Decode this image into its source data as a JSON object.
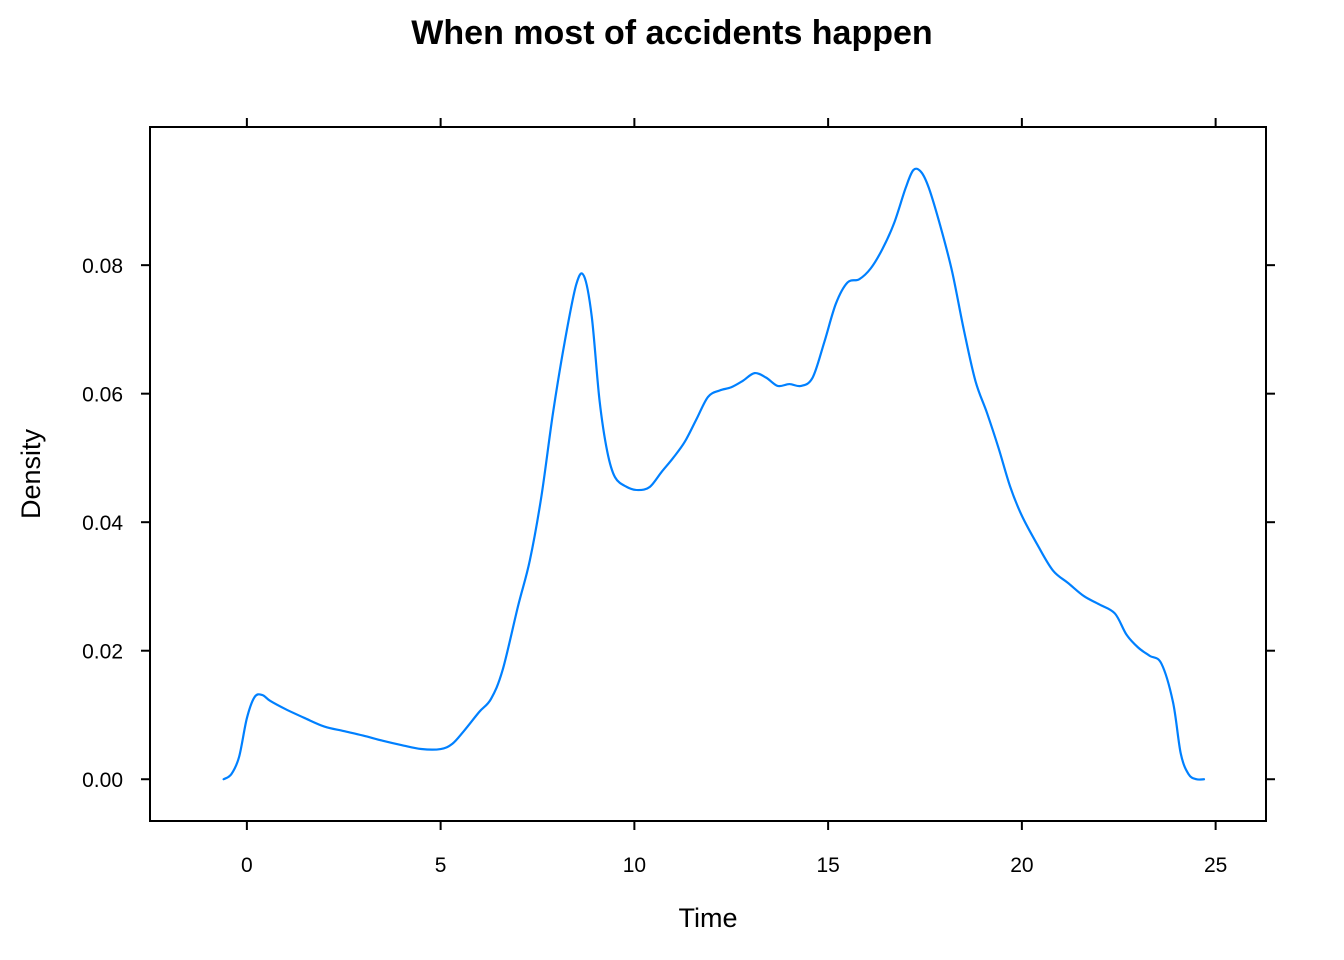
{
  "chart_data": {
    "type": "line",
    "title": "When most of accidents happen",
    "xlabel": "Time",
    "ylabel": "Density",
    "xlim": [
      -2.5,
      26.3
    ],
    "ylim": [
      -0.0065,
      0.1015
    ],
    "x_ticks": [
      0,
      5,
      10,
      15,
      20,
      25
    ],
    "x_tick_labels": [
      "0",
      "5",
      "10",
      "15",
      "20",
      "25"
    ],
    "y_ticks": [
      0.0,
      0.02,
      0.04,
      0.06,
      0.08
    ],
    "y_tick_labels": [
      "0.00",
      "0.02",
      "0.04",
      "0.06",
      "0.08"
    ],
    "grid": false,
    "legend": "none",
    "series": [
      {
        "color": "#0080ff",
        "x": [
          -0.6,
          -0.4,
          -0.2,
          0.0,
          0.2,
          0.4,
          0.6,
          1.0,
          1.5,
          2.0,
          2.5,
          3.0,
          3.5,
          4.0,
          4.5,
          5.0,
          5.3,
          5.6,
          6.0,
          6.3,
          6.6,
          7.0,
          7.3,
          7.6,
          7.9,
          8.2,
          8.5,
          8.7,
          8.9,
          9.1,
          9.3,
          9.5,
          9.8,
          10.1,
          10.4,
          10.7,
          11.0,
          11.3,
          11.6,
          11.9,
          12.2,
          12.5,
          12.8,
          13.1,
          13.4,
          13.7,
          14.0,
          14.3,
          14.6,
          14.9,
          15.2,
          15.5,
          15.8,
          16.1,
          16.4,
          16.7,
          17.0,
          17.2,
          17.4,
          17.6,
          17.9,
          18.2,
          18.5,
          18.8,
          19.1,
          19.4,
          19.7,
          20.0,
          20.4,
          20.8,
          21.2,
          21.6,
          22.0,
          22.4,
          22.7,
          23.0,
          23.3,
          23.6,
          23.9,
          24.1,
          24.3,
          24.5,
          24.7
        ],
        "y": [
          0.0,
          0.0008,
          0.0035,
          0.0095,
          0.0128,
          0.0131,
          0.0122,
          0.0109,
          0.0095,
          0.0082,
          0.0075,
          0.0068,
          0.006,
          0.0053,
          0.0047,
          0.0047,
          0.0055,
          0.0075,
          0.0105,
          0.0125,
          0.017,
          0.027,
          0.034,
          0.044,
          0.057,
          0.068,
          0.077,
          0.0783,
          0.072,
          0.059,
          0.051,
          0.047,
          0.0455,
          0.045,
          0.0455,
          0.0478,
          0.05,
          0.0525,
          0.056,
          0.0595,
          0.0605,
          0.061,
          0.062,
          0.0632,
          0.0625,
          0.0612,
          0.0615,
          0.0612,
          0.0625,
          0.068,
          0.074,
          0.0773,
          0.0778,
          0.0795,
          0.0825,
          0.0865,
          0.092,
          0.0948,
          0.0945,
          0.092,
          0.086,
          0.079,
          0.07,
          0.062,
          0.057,
          0.0515,
          0.0455,
          0.041,
          0.0365,
          0.0325,
          0.0305,
          0.0285,
          0.0272,
          0.0258,
          0.0225,
          0.0205,
          0.0192,
          0.018,
          0.012,
          0.004,
          0.0008,
          0.0,
          0.0
        ]
      }
    ]
  }
}
